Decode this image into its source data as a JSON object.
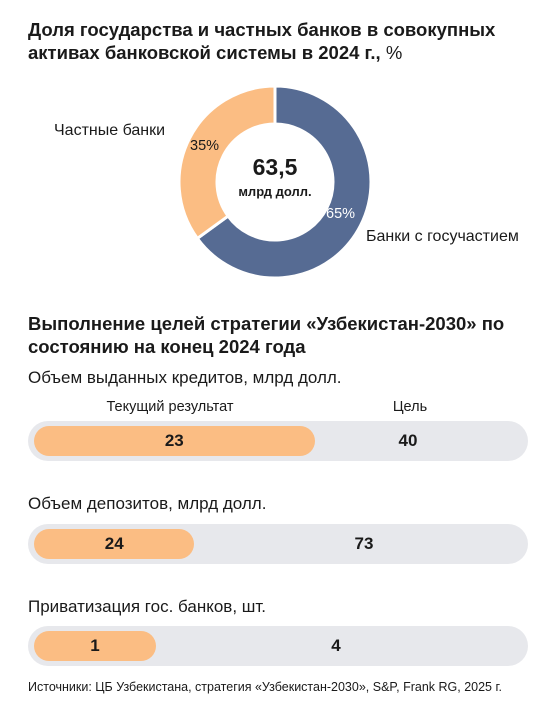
{
  "chart_title": "Доля государства и частных банков в совокупных активах банковской системы в 2024 г.,",
  "chart_title_unit": "%",
  "colors": {
    "state": "#566b93",
    "private": "#fbbd83",
    "track": "#e7e8ec"
  },
  "chart_data": [
    {
      "type": "pie",
      "title": "Доля государства и частных банков в совокупных активах банковской системы в 2024 г., %",
      "center_value": "63,5",
      "center_unit": "млрд долл.",
      "slices": [
        {
          "name": "Банки с госучастием",
          "value": 65,
          "label": "65%",
          "color": "#566b93"
        },
        {
          "name": "Частные банки",
          "value": 35,
          "label": "35%",
          "color": "#fbbd83"
        }
      ]
    },
    {
      "type": "bar",
      "title": "Выполнение целей стратегии «Узбекистан-2030» по состоянию на конец 2024 года",
      "column_headers": {
        "current": "Текущий результат",
        "target": "Цель"
      },
      "metrics": [
        {
          "label": "Объем выданных кредитов, млрд долл.",
          "current": 23,
          "target": 40
        },
        {
          "label": "Объем депозитов, млрд долл.",
          "current": 24,
          "target": 73
        },
        {
          "label": "Приватизация гос. банков, шт.",
          "current": 1,
          "target": 4
        }
      ]
    }
  ],
  "source": "Источники: ЦБ Узбекистана, стратегия «Узбекистан-2030», S&P, Frank RG, 2025 г."
}
